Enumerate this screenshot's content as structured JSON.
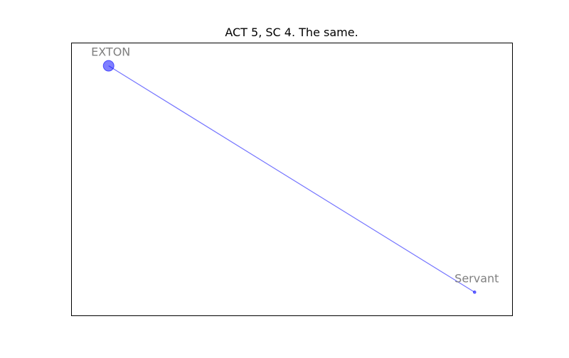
{
  "chart_data": {
    "type": "network",
    "title": "ACT 5, SC 4. The same.",
    "xlim": [
      0,
      1
    ],
    "ylim": [
      0,
      1
    ],
    "grid": false,
    "axes_ticks": false,
    "nodes": [
      {
        "label": "EXTON",
        "x": 0.085,
        "y": 0.915,
        "size": "large"
      },
      {
        "label": "Servant",
        "x": 0.915,
        "y": 0.085,
        "size": "small"
      }
    ],
    "edges": [
      {
        "source": "EXTON",
        "target": "Servant"
      }
    ],
    "colors": {
      "node": "#0000ff",
      "edge": "#0000ff",
      "label": "#808080",
      "frame": "#000000"
    }
  }
}
